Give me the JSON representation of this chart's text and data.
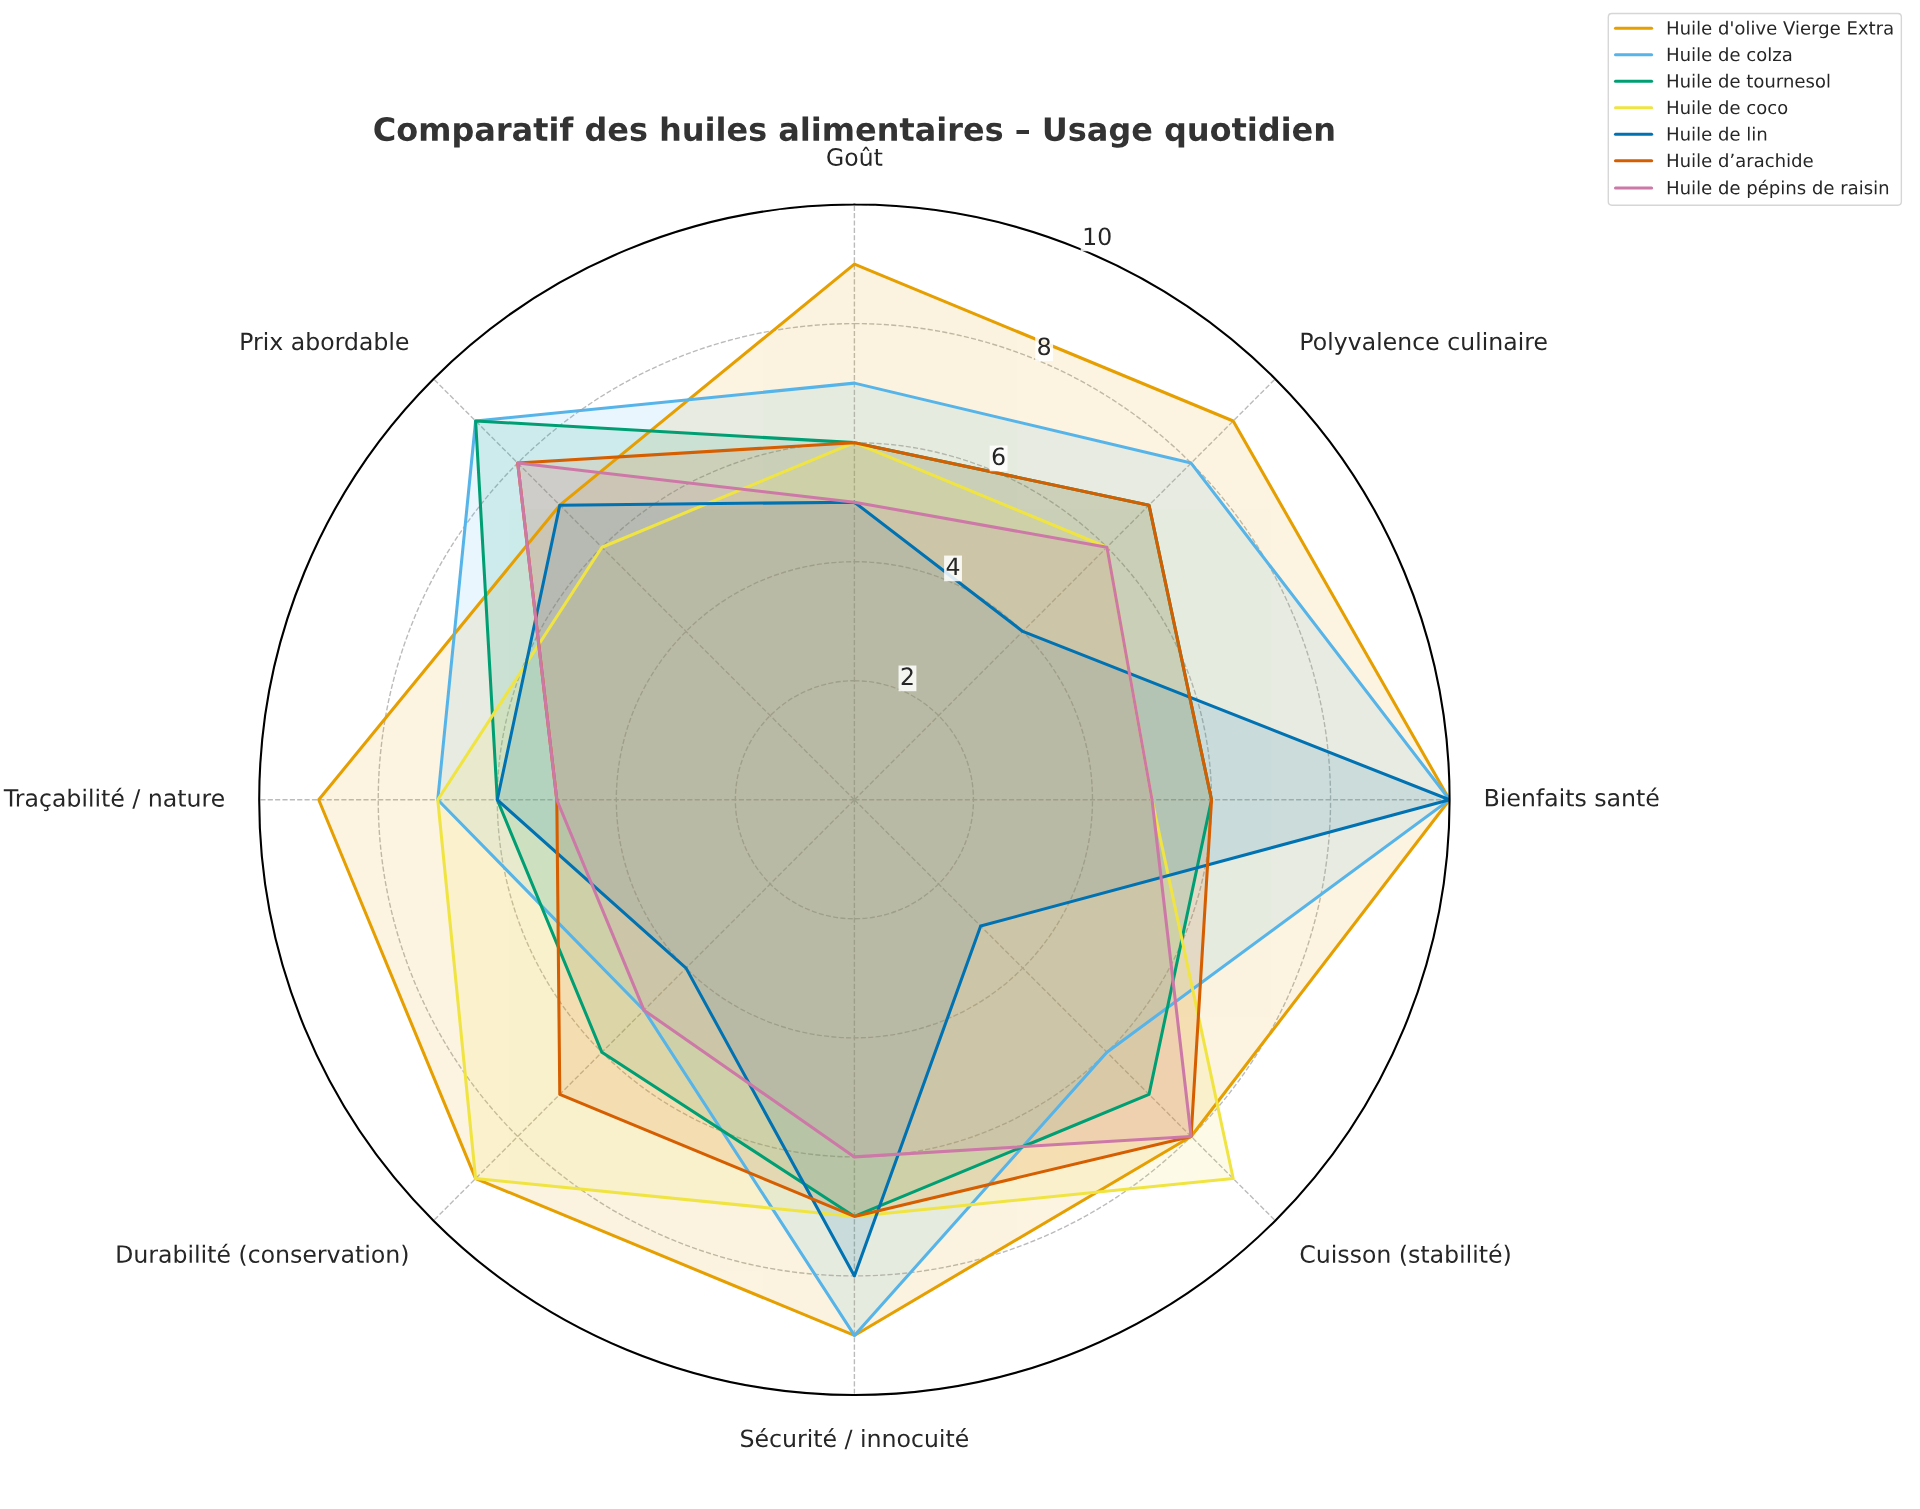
{
  "chart_data": {
    "type": "radar",
    "title": "Comparatif des huiles alimentaires – Usage quotidien",
    "categories": [
      "Goût",
      "Polyvalence culinaire",
      "Bienfaits santé",
      "Cuisson (stabilité)",
      "Sécurité / innocuité",
      "Durabilité (conservation)",
      "Traçabilité / nature",
      "Prix abordable"
    ],
    "series": [
      {
        "name": "Huile d'olive Vierge Extra",
        "color": "#e69f00",
        "values": [
          9,
          9,
          10,
          8,
          9,
          9,
          9,
          7
        ]
      },
      {
        "name": "Huile de colza",
        "color": "#56b4e9",
        "values": [
          7,
          8,
          10,
          6,
          9,
          5,
          7,
          9
        ]
      },
      {
        "name": "Huile de tournesol",
        "color": "#009e73",
        "values": [
          6,
          7,
          6,
          7,
          7,
          6,
          6,
          9
        ]
      },
      {
        "name": "Huile de coco",
        "color": "#f0e442",
        "values": [
          6,
          6,
          5,
          9,
          7,
          9,
          7,
          6
        ]
      },
      {
        "name": "Huile de lin",
        "color": "#0072b2",
        "values": [
          5,
          4,
          10,
          3,
          8,
          4,
          6,
          7
        ]
      },
      {
        "name": "Huile d’arachide",
        "color": "#d55e00",
        "values": [
          6,
          7,
          6,
          8,
          7,
          7,
          5,
          8
        ]
      },
      {
        "name": "Huile de pépins de raisin",
        "color": "#cc79a7",
        "values": [
          5,
          6,
          5,
          8,
          6,
          5,
          5,
          8
        ]
      }
    ],
    "ylim": [
      0,
      10
    ],
    "yticks": [
      2,
      4,
      6,
      8,
      10
    ],
    "grid": true,
    "legend": "top right"
  }
}
